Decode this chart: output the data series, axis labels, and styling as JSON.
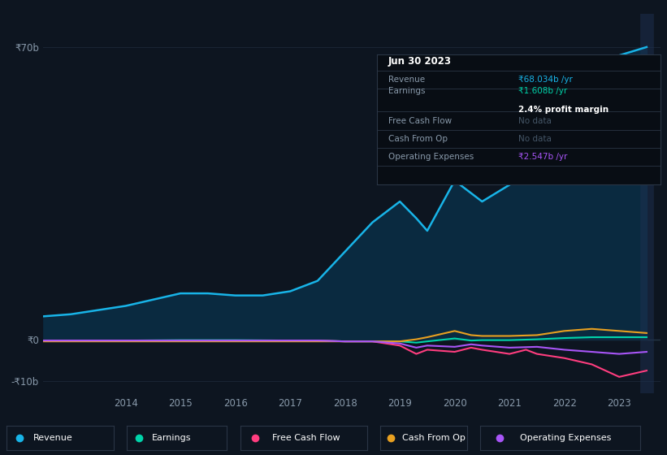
{
  "background_color": "#0d1520",
  "plot_bg_color": "#0d1520",
  "grid_color": "#1a2535",
  "title_box": {
    "date": "Jun 30 2023",
    "revenue_val": "₹68.034b",
    "revenue_unit": "/yr",
    "earnings_val": "₹1.608b",
    "earnings_unit": "/yr",
    "profit_margin": "2.4% profit margin",
    "fcf": "No data",
    "cash_from_op": "No data",
    "op_expenses_val": "₹2.547b",
    "op_expenses_unit": "/yr"
  },
  "ylim": [
    -13,
    78
  ],
  "ytick_positions": [
    -10,
    0,
    70
  ],
  "ytick_labels": [
    "-₹10b",
    "₹0",
    "₹70b"
  ],
  "xticks": [
    2014,
    2015,
    2016,
    2017,
    2018,
    2019,
    2020,
    2021,
    2022,
    2023
  ],
  "xlim": [
    2012.5,
    2023.75
  ],
  "series": {
    "Revenue": {
      "color": "#18b4e8",
      "fill_color": "#0a2a40",
      "x": [
        2012.5,
        2013.0,
        2013.5,
        2014.0,
        2014.5,
        2015.0,
        2015.5,
        2016.0,
        2016.5,
        2017.0,
        2017.5,
        2018.0,
        2018.5,
        2018.8,
        2019.0,
        2019.3,
        2019.5,
        2020.0,
        2020.5,
        2021.0,
        2021.5,
        2022.0,
        2022.5,
        2023.0,
        2023.5
      ],
      "y": [
        5.5,
        6.0,
        7.0,
        8.0,
        9.5,
        11.0,
        11.0,
        10.5,
        10.5,
        11.5,
        14.0,
        21.0,
        28.0,
        31.0,
        33.0,
        29.0,
        26.0,
        38.0,
        33.0,
        37.0,
        43.0,
        55.0,
        62.0,
        68.0,
        70.0
      ]
    },
    "Earnings": {
      "color": "#00d4aa",
      "x": [
        2012.5,
        2014.0,
        2015.0,
        2016.0,
        2017.0,
        2017.5,
        2018.0,
        2018.5,
        2019.0,
        2019.3,
        2019.5,
        2020.0,
        2020.3,
        2020.5,
        2021.0,
        2021.5,
        2022.0,
        2022.5,
        2023.0,
        2023.5
      ],
      "y": [
        -0.3,
        -0.3,
        -0.2,
        -0.2,
        -0.3,
        -0.3,
        -0.5,
        -0.5,
        -0.5,
        -0.8,
        -0.5,
        0.2,
        -0.3,
        -0.2,
        -0.2,
        0.0,
        0.3,
        0.5,
        0.5,
        0.5
      ]
    },
    "Free Cash Flow": {
      "color": "#ff3d7f",
      "x": [
        2012.5,
        2014.0,
        2015.0,
        2016.0,
        2017.0,
        2017.5,
        2018.0,
        2018.5,
        2019.0,
        2019.3,
        2019.5,
        2020.0,
        2020.3,
        2020.5,
        2021.0,
        2021.3,
        2021.5,
        2022.0,
        2022.5,
        2023.0,
        2023.5
      ],
      "y": [
        -0.3,
        -0.3,
        -0.3,
        -0.3,
        -0.3,
        -0.3,
        -0.5,
        -0.5,
        -1.5,
        -3.5,
        -2.5,
        -3.0,
        -2.0,
        -2.5,
        -3.5,
        -2.5,
        -3.5,
        -4.5,
        -6.0,
        -9.0,
        -7.5
      ]
    },
    "Cash From Op": {
      "color": "#e8a020",
      "x": [
        2012.5,
        2014.0,
        2015.0,
        2016.0,
        2017.0,
        2017.5,
        2018.0,
        2018.5,
        2019.0,
        2019.3,
        2019.5,
        2020.0,
        2020.3,
        2020.5,
        2021.0,
        2021.5,
        2022.0,
        2022.5,
        2023.0,
        2023.5
      ],
      "y": [
        -0.5,
        -0.5,
        -0.5,
        -0.5,
        -0.5,
        -0.5,
        -0.5,
        -0.5,
        -0.5,
        0.0,
        0.5,
        2.0,
        1.0,
        0.8,
        0.8,
        1.0,
        2.0,
        2.5,
        2.0,
        1.5
      ]
    },
    "Operating Expenses": {
      "color": "#a855f7",
      "x": [
        2012.5,
        2014.0,
        2015.0,
        2016.0,
        2017.0,
        2017.5,
        2018.0,
        2018.5,
        2019.0,
        2019.3,
        2019.5,
        2020.0,
        2020.3,
        2020.5,
        2021.0,
        2021.5,
        2022.0,
        2022.5,
        2023.0,
        2023.5
      ],
      "y": [
        -0.3,
        -0.3,
        -0.3,
        -0.3,
        -0.3,
        -0.3,
        -0.5,
        -0.5,
        -1.0,
        -2.0,
        -1.5,
        -1.8,
        -1.2,
        -1.5,
        -2.0,
        -1.8,
        -2.5,
        -3.0,
        -3.5,
        -3.0
      ]
    }
  },
  "legend_items": [
    {
      "label": "Revenue",
      "color": "#18b4e8"
    },
    {
      "label": "Earnings",
      "color": "#00d4aa"
    },
    {
      "label": "Free Cash Flow",
      "color": "#ff3d7f"
    },
    {
      "label": "Cash From Op",
      "color": "#e8a020"
    },
    {
      "label": "Operating Expenses",
      "color": "#a855f7"
    }
  ]
}
